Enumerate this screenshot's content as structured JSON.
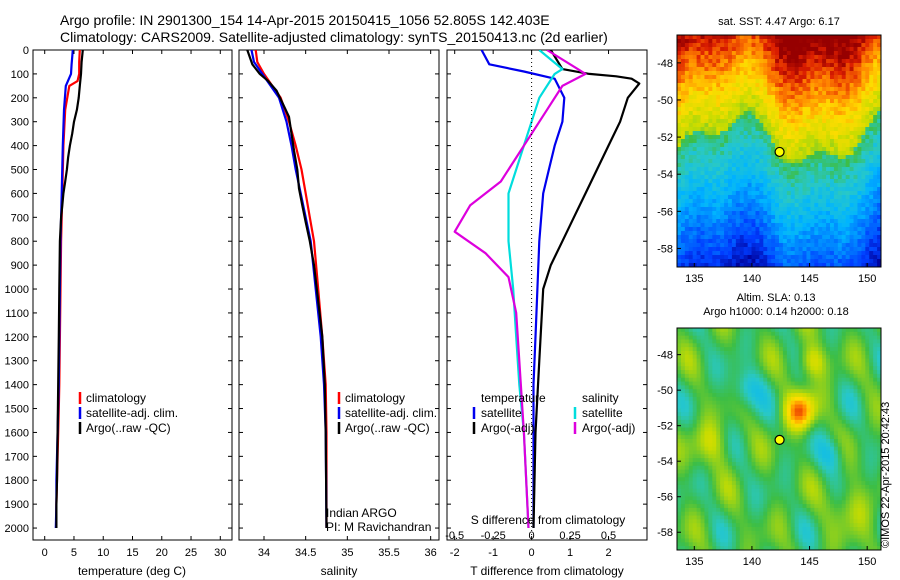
{
  "header": {
    "line1": "Argo profile: IN 2901300_154 14-Apr-2015 20150415_1056 52.805S 142.403E",
    "line2": "Climatology: CARS2009. Satellite-adjusted climatology: synTS_20150413.nc (2d earlier)"
  },
  "colors": {
    "climatology": "#ff0000",
    "satellite": "#0000ee",
    "argo": "#000000",
    "s_satellite": "#00dddd",
    "s_argo": "#dd00dd"
  },
  "chart_data": [
    {
      "type": "line",
      "name": "temperature-panel",
      "xlabel": "temperature (deg C)",
      "ylabel": "",
      "xlim": [
        -2,
        32
      ],
      "ylim": [
        2050,
        0
      ],
      "xticks": [
        0,
        5,
        10,
        15,
        20,
        25,
        30
      ],
      "yticks": [
        0,
        100,
        200,
        300,
        400,
        500,
        600,
        700,
        800,
        900,
        1000,
        1100,
        1200,
        1300,
        1400,
        1500,
        1600,
        1700,
        1800,
        1900,
        2000
      ],
      "legend": [
        "climatology",
        "satellite-adj. clim.",
        "Argo(..raw -QC)"
      ],
      "series": [
        {
          "name": "climatology",
          "x": [
            6.0,
            5.9,
            5.9,
            5.6,
            4.2,
            3.5,
            3.2,
            3.0,
            2.8,
            2.7,
            2.6,
            2.5,
            2.4,
            2.3,
            2.2,
            2.1,
            2.0,
            2.0
          ],
          "y": [
            0,
            50,
            100,
            130,
            150,
            250,
            400,
            600,
            800,
            1000,
            1200,
            1400,
            1500,
            1600,
            1700,
            1800,
            1900,
            2000
          ]
        },
        {
          "name": "satellite-adj. clim.",
          "x": [
            4.8,
            4.6,
            4.5,
            3.6,
            3.3,
            3.1,
            2.9,
            2.7,
            2.6,
            2.5,
            2.4,
            2.3,
            2.2,
            2.1,
            2.0,
            2.0,
            1.9
          ],
          "y": [
            0,
            60,
            100,
            150,
            250,
            400,
            600,
            800,
            1000,
            1200,
            1400,
            1500,
            1600,
            1700,
            1800,
            1900,
            2000
          ]
        },
        {
          "name": "Argo(..raw -QC)",
          "x": [
            6.5,
            6.3,
            6.2,
            6.0,
            5.8,
            5.5,
            5.0,
            4.7,
            4.3,
            4.0,
            3.8,
            3.5,
            3.2,
            3.0,
            2.8,
            2.6,
            2.5,
            2.4,
            2.3,
            2.2,
            2.1,
            2.0,
            2.0
          ],
          "y": [
            0,
            50,
            100,
            150,
            200,
            250,
            300,
            350,
            400,
            450,
            500,
            550,
            600,
            650,
            700,
            800,
            1000,
            1200,
            1400,
            1600,
            1800,
            1900,
            2000
          ]
        }
      ]
    },
    {
      "type": "line",
      "name": "salinity-panel",
      "xlabel": "salinity",
      "xlim": [
        33.7,
        36.1
      ],
      "ylim": [
        2050,
        0
      ],
      "xticks": [
        34,
        34.5,
        35,
        35.5,
        36
      ],
      "xticklabels": [
        "34",
        "34.5",
        "35",
        "35.5",
        "36"
      ],
      "legend": [
        "climatology",
        "satellite-adj. clim.",
        "Argo(..raw -QC)"
      ],
      "annotation": [
        "Indian ARGO",
        "PI: M Ravichandran"
      ],
      "series": [
        {
          "name": "climatology",
          "x": [
            33.9,
            33.92,
            34.0,
            34.1,
            34.2,
            34.3,
            34.38,
            34.45,
            34.5,
            34.55,
            34.6,
            34.65,
            34.7,
            34.74,
            34.75,
            34.75
          ],
          "y": [
            0,
            50,
            100,
            150,
            200,
            300,
            400,
            500,
            600,
            700,
            800,
            1000,
            1200,
            1400,
            1600,
            2000
          ]
        },
        {
          "name": "satellite-adj. clim.",
          "x": [
            33.85,
            33.88,
            33.98,
            34.08,
            34.18,
            34.27,
            34.33,
            34.38,
            34.44,
            34.5,
            34.56,
            34.62,
            34.68,
            34.72,
            34.74,
            34.75
          ],
          "y": [
            0,
            50,
            100,
            150,
            200,
            300,
            400,
            500,
            600,
            700,
            800,
            1000,
            1200,
            1400,
            1600,
            2000
          ]
        },
        {
          "name": "Argo(..raw -QC)",
          "x": [
            33.8,
            33.86,
            33.95,
            34.05,
            34.15,
            34.22,
            34.3,
            34.33,
            34.36,
            34.4,
            34.42,
            34.46,
            34.5,
            34.55,
            34.6,
            34.65,
            34.7,
            34.73,
            34.74,
            34.75
          ],
          "y": [
            0,
            60,
            100,
            130,
            170,
            220,
            280,
            350,
            420,
            500,
            580,
            650,
            720,
            800,
            900,
            1050,
            1200,
            1400,
            1600,
            2000
          ]
        }
      ]
    },
    {
      "type": "line",
      "name": "difference-panel",
      "xlabel": "T difference from climatology",
      "top_xlabel": "S difference from climatology",
      "xlim": [
        -2.2,
        3.0
      ],
      "ylim": [
        2050,
        0
      ],
      "xticks": [
        -2,
        -1,
        0,
        1,
        2
      ],
      "xticklabels": [
        "-2",
        "-1",
        "0",
        "1",
        "2"
      ],
      "top_xticks": [
        -0.5,
        -0.25,
        0,
        0.25,
        0.5
      ],
      "top_xticklabels": [
        "-0.5",
        "-0.25",
        "0",
        "0.25",
        "0.5"
      ],
      "s_scale": 4,
      "legend_temperature_title": "temperature",
      "legend_salinity_title": "salinity",
      "legend_temperature": [
        "satellite",
        "Argo(-adj)"
      ],
      "legend_salinity": [
        "satellite",
        "Argo(-adj)"
      ],
      "series": [
        {
          "name": "T satellite",
          "x": [
            -1.3,
            -1.1,
            -0.2,
            0.6,
            0.85,
            0.8,
            0.6,
            0.45,
            0.3,
            0.25,
            0.2,
            0.15,
            0.1,
            0.05,
            0.05,
            0.05
          ],
          "y": [
            0,
            60,
            90,
            120,
            200,
            300,
            400,
            500,
            600,
            700,
            800,
            1000,
            1200,
            1400,
            1600,
            2000
          ]
        },
        {
          "name": "T Argo(-adj)",
          "x": [
            0.5,
            0.8,
            1.5,
            2.2,
            2.6,
            2.8,
            2.5,
            2.3,
            2.0,
            1.7,
            1.4,
            1.1,
            0.8,
            0.5,
            0.3,
            0.2,
            0.1,
            0.05
          ],
          "y": [
            0,
            80,
            100,
            110,
            120,
            140,
            200,
            300,
            400,
            500,
            600,
            700,
            800,
            900,
            1000,
            1300,
            1600,
            2000
          ]
        },
        {
          "name": "S satellite",
          "x": [
            0.05,
            0.2,
            0.15,
            0.05,
            0.0,
            -0.05,
            -0.1,
            -0.15,
            -0.15,
            -0.15,
            -0.12,
            -0.1,
            -0.08,
            -0.05,
            -0.02
          ],
          "y": [
            0,
            80,
            100,
            200,
            300,
            400,
            500,
            600,
            700,
            800,
            1000,
            1200,
            1400,
            1600,
            2000
          ]
        },
        {
          "name": "S Argo(-adj)",
          "x": [
            0.1,
            0.3,
            0.35,
            0.2,
            0.1,
            0.0,
            -0.1,
            -0.2,
            -0.4,
            -0.5,
            -0.3,
            -0.15,
            -0.1,
            -0.08,
            -0.05,
            -0.02
          ],
          "y": [
            0,
            80,
            100,
            150,
            250,
            350,
            450,
            550,
            650,
            760,
            850,
            950,
            1100,
            1300,
            1600,
            2000
          ]
        }
      ]
    },
    {
      "type": "heatmap",
      "name": "sst-map",
      "title": "sat. SST: 4.47 Argo: 6.17",
      "xlim": [
        133.5,
        151.2
      ],
      "ylim": [
        -59,
        -46.5
      ],
      "xticks": [
        135,
        140,
        145,
        150
      ],
      "yticks": [
        -48,
        -50,
        -52,
        -54,
        -56,
        -58
      ],
      "marker": {
        "lon": 142.4,
        "lat": -52.8
      }
    },
    {
      "type": "heatmap",
      "name": "sla-map",
      "title_line1": "Altim. SLA: 0.13",
      "title_line2": "Argo h1000: 0.14 h2000: 0.18",
      "xlim": [
        133.5,
        151.2
      ],
      "ylim": [
        -59,
        -46.5
      ],
      "xticks": [
        135,
        140,
        145,
        150
      ],
      "yticks": [
        -48,
        -50,
        -52,
        -54,
        -56,
        -58
      ],
      "marker": {
        "lon": 142.4,
        "lat": -52.8
      },
      "side_label": "©IMOS 22-Apr-2015 20:42:43"
    }
  ]
}
